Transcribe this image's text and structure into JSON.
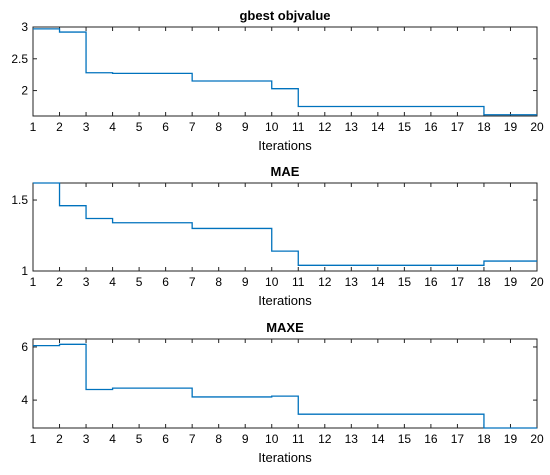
{
  "chart_data": [
    {
      "type": "line",
      "step": true,
      "title": "gbest objvalue",
      "xlabel": "Iterations",
      "ylabel": "",
      "xlim": [
        1,
        20
      ],
      "ylim": [
        1.6,
        3.0
      ],
      "xticks": [
        "1",
        "2",
        "3",
        "4",
        "5",
        "6",
        "7",
        "8",
        "9",
        "10",
        "11",
        "12",
        "13",
        "14",
        "15",
        "16",
        "17",
        "18",
        "19",
        "20"
      ],
      "yticks": [
        {
          "value": 2,
          "label": "2"
        },
        {
          "value": 2.5,
          "label": "2.5"
        },
        {
          "value": 3,
          "label": "3"
        }
      ],
      "series": [
        {
          "color": "#0072bd",
          "x": [
            1,
            2,
            3,
            4,
            5,
            6,
            7,
            8,
            9,
            10,
            11,
            12,
            13,
            14,
            15,
            16,
            17,
            18,
            19,
            20
          ],
          "y": [
            2.97,
            2.92,
            2.28,
            2.27,
            2.27,
            2.27,
            2.15,
            2.15,
            2.15,
            2.03,
            1.75,
            1.75,
            1.75,
            1.75,
            1.75,
            1.75,
            1.75,
            1.62,
            1.62,
            1.62
          ]
        }
      ],
      "grid": false
    },
    {
      "type": "line",
      "step": true,
      "title": "MAE",
      "xlabel": "Iterations",
      "ylabel": "",
      "xlim": [
        1,
        20
      ],
      "ylim": [
        1.0,
        1.62
      ],
      "xticks": [
        "1",
        "2",
        "3",
        "4",
        "5",
        "6",
        "7",
        "8",
        "9",
        "10",
        "11",
        "12",
        "13",
        "14",
        "15",
        "16",
        "17",
        "18",
        "19",
        "20"
      ],
      "yticks": [
        {
          "value": 1,
          "label": "1"
        },
        {
          "value": 1.5,
          "label": "1.5"
        }
      ],
      "series": [
        {
          "color": "#0072bd",
          "x": [
            1,
            2,
            3,
            4,
            5,
            6,
            7,
            8,
            9,
            10,
            11,
            12,
            13,
            14,
            15,
            16,
            17,
            18,
            19,
            20
          ],
          "y": [
            1.62,
            1.46,
            1.37,
            1.34,
            1.34,
            1.34,
            1.3,
            1.3,
            1.3,
            1.14,
            1.04,
            1.04,
            1.04,
            1.04,
            1.04,
            1.04,
            1.04,
            1.07,
            1.07,
            1.07
          ]
        }
      ],
      "grid": false
    },
    {
      "type": "line",
      "step": true,
      "title": "MAXE",
      "xlabel": "Iterations",
      "ylabel": "",
      "xlim": [
        1,
        20
      ],
      "ylim": [
        2.95,
        6.3
      ],
      "xticks": [
        "1",
        "2",
        "3",
        "4",
        "5",
        "6",
        "7",
        "8",
        "9",
        "10",
        "11",
        "12",
        "13",
        "14",
        "15",
        "16",
        "17",
        "18",
        "19",
        "20"
      ],
      "yticks": [
        {
          "value": 4,
          "label": "4"
        },
        {
          "value": 6,
          "label": "6"
        }
      ],
      "series": [
        {
          "color": "#0072bd",
          "x": [
            1,
            2,
            3,
            4,
            5,
            6,
            7,
            8,
            9,
            10,
            11,
            12,
            13,
            14,
            15,
            16,
            17,
            18,
            19,
            20
          ],
          "y": [
            6.05,
            6.1,
            4.4,
            4.45,
            4.45,
            4.45,
            4.12,
            4.12,
            4.12,
            4.15,
            3.47,
            3.47,
            3.47,
            3.47,
            3.47,
            3.47,
            3.47,
            2.95,
            2.95,
            2.95
          ]
        }
      ],
      "grid": false
    }
  ]
}
